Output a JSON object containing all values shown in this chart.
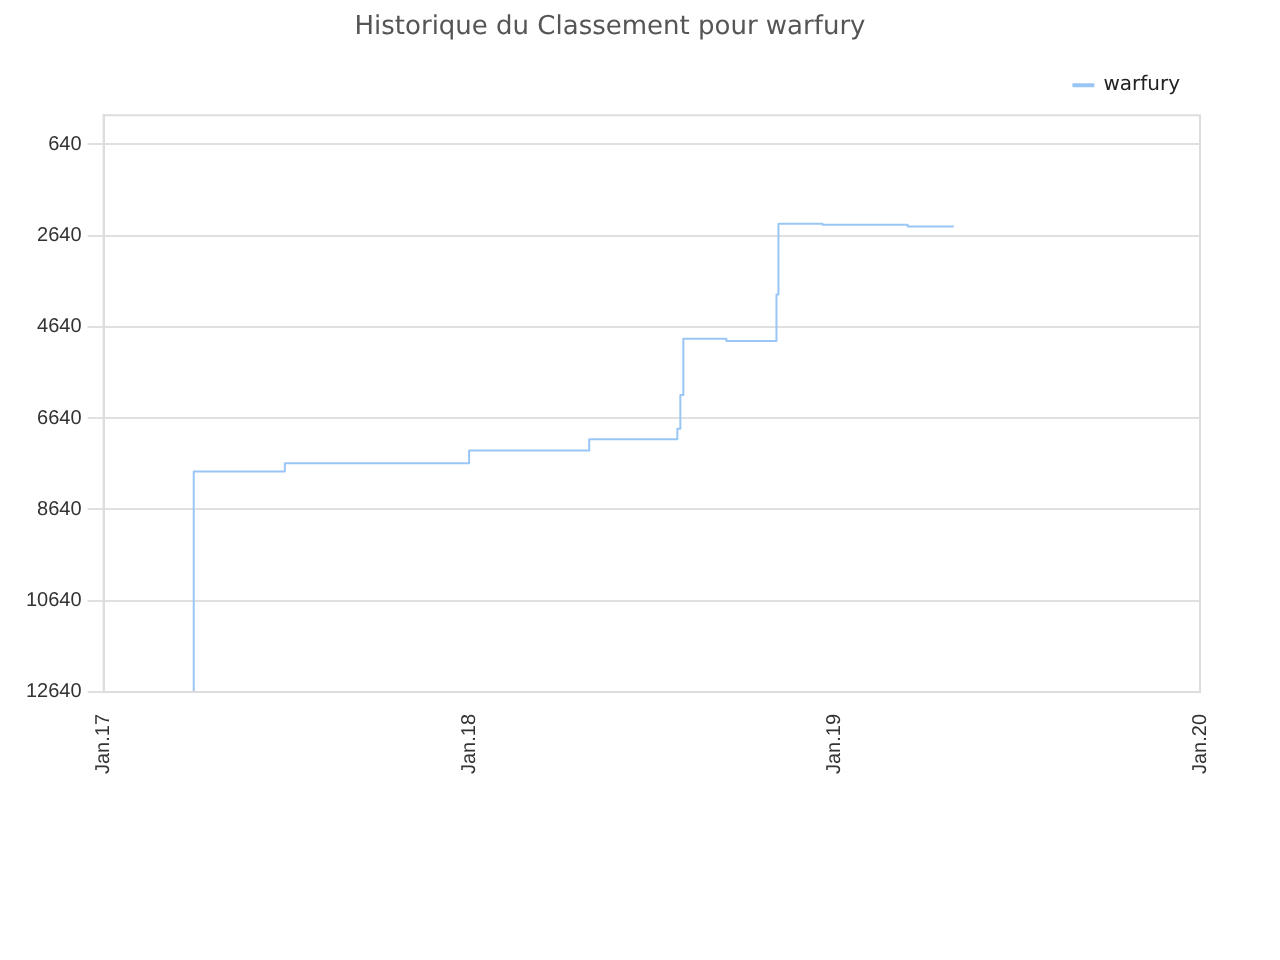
{
  "chart_data": {
    "type": "step",
    "title": "Historique du Classement pour warfury",
    "x": [
      "2017-03-31",
      "2017-04-01",
      "2017-07-01",
      "2018-01-01",
      "2018-05-01",
      "2018-07-28",
      "2018-07-31",
      "2018-08-03",
      "2018-09-15",
      "2018-11-04",
      "2018-11-06",
      "2018-12-20",
      "2019-03-15",
      "2019-04-30"
    ],
    "series": [
      {
        "name": "warfury",
        "color": "#99c6f5",
        "values": [
          12640,
          7810,
          7630,
          7350,
          7100,
          6870,
          6130,
          4900,
          4950,
          3930,
          2380,
          2400,
          2440,
          2440
        ]
      }
    ],
    "xlim": [
      "2017-01",
      "2020-01"
    ],
    "xticks": [
      {
        "value": "2017-01",
        "label": "Jan.17"
      },
      {
        "value": "2018-01",
        "label": "Jan.18"
      },
      {
        "value": "2019-01",
        "label": "Jan.19"
      },
      {
        "value": "2020-01",
        "label": "Jan.20"
      }
    ],
    "ylim": [
      12640,
      0
    ],
    "yticks": [
      640,
      2640,
      4640,
      6640,
      8640,
      10640,
      12640
    ],
    "grid": "y",
    "legend": "top right",
    "line_style": "solid",
    "marker": "none"
  }
}
